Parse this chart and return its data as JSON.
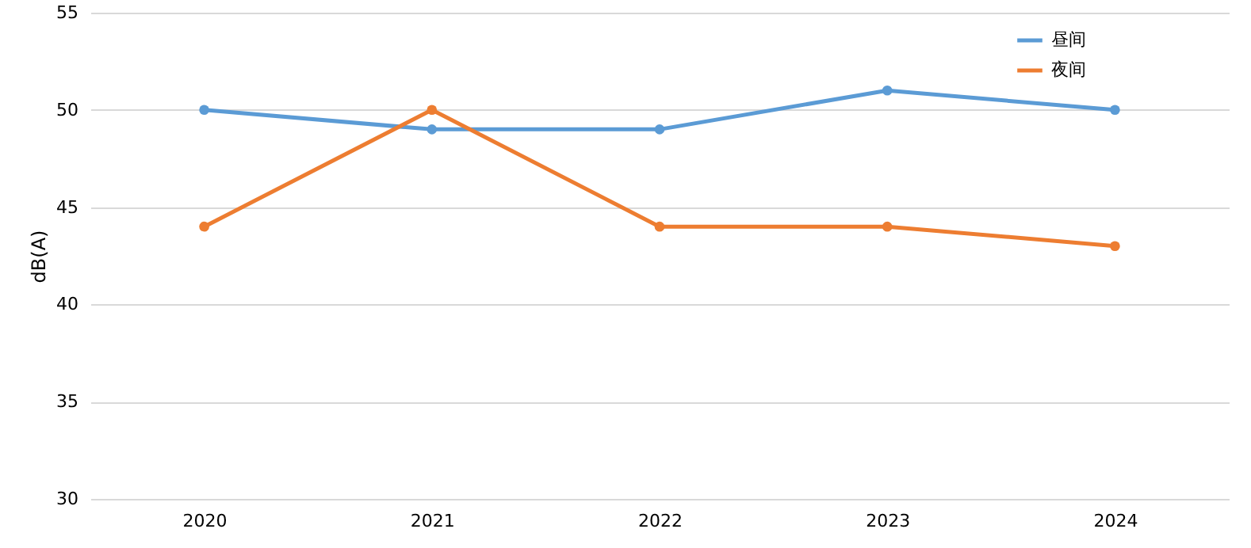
{
  "chart_data": {
    "type": "line",
    "ylabel": "dB(A)",
    "categories": [
      "2020",
      "2021",
      "2022",
      "2023",
      "2024"
    ],
    "series": [
      {
        "name": "昼间",
        "color": "#5b9bd5",
        "values": [
          50,
          49,
          49,
          51,
          50
        ]
      },
      {
        "name": "夜间",
        "color": "#ed7d31",
        "values": [
          44,
          50,
          44,
          44,
          43
        ]
      }
    ],
    "ylim": [
      30,
      55
    ],
    "yticks": [
      30,
      35,
      40,
      45,
      50,
      55
    ],
    "grid": "y",
    "legend": "top right",
    "marker": "circle"
  }
}
